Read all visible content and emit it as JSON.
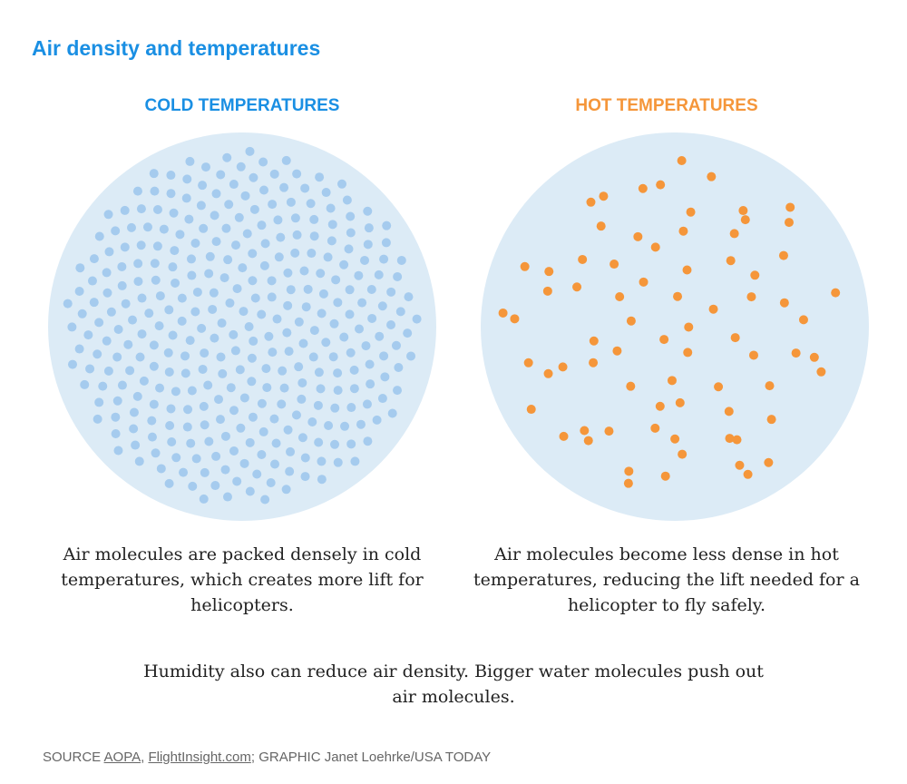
{
  "title": "Air density and temperatures",
  "colors": {
    "accent_blue": "#1a8fe3",
    "accent_orange": "#f5963a",
    "circle_bg": "#dcebf6",
    "cold_dot": "#a5cbee",
    "hot_dot": "#f5963a"
  },
  "cold": {
    "heading": "COLD TEMPERATURES",
    "molecule_count": 330,
    "caption": "Air molecules are packed densely in cold temperatures, which creates more lift for helicopters."
  },
  "hot": {
    "heading": "HOT TEMPERATURES",
    "molecule_count": 75,
    "caption": "Air molecules become less dense in hot temperatures, reducing the lift needed for a helicopter to fly safely."
  },
  "note": "Humidity also can reduce air density. Bigger water molecules push out air molecules.",
  "footer": {
    "source_label": "SOURCE",
    "source_1": "AOPA",
    "sep_1": ",",
    "source_2": "FlightInsight.com",
    "sep_2": ";",
    "graphic_label": "GRAPHIC Janet Loehrke/USA TODAY"
  }
}
